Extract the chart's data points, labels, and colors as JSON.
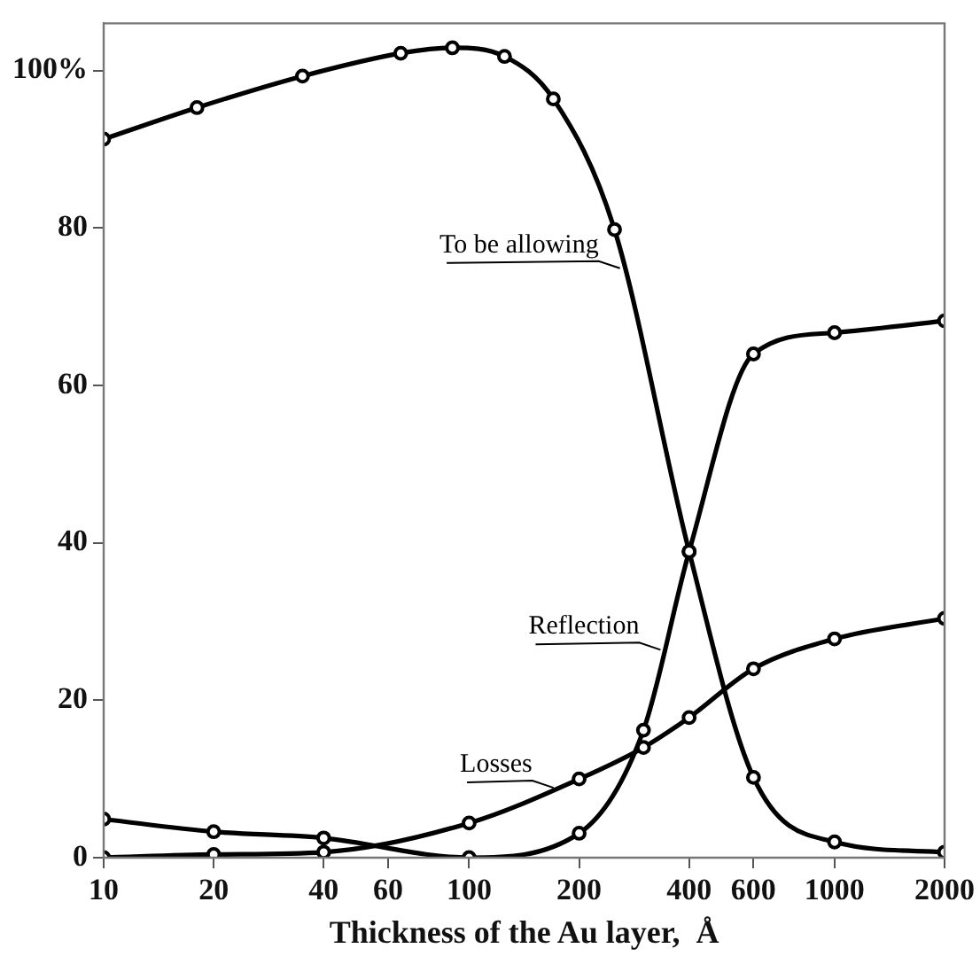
{
  "chart_data": {
    "type": "line",
    "xlabel": "Thickness of the Au layer,  Å",
    "log": "x",
    "xlim": [
      10,
      2000
    ],
    "xticks": [
      10,
      20,
      40,
      60,
      100,
      200,
      400,
      600,
      1000,
      2000
    ],
    "ylim": [
      0,
      106
    ],
    "yticks": [
      0,
      20,
      40,
      60,
      80,
      {
        "value": 100,
        "label": "100%"
      }
    ],
    "grid": false,
    "legend": false,
    "marker": "circle",
    "line_style": "solid",
    "series": [
      {
        "name": "To be allowing",
        "color": "#000000",
        "x": [
          10,
          18,
          35,
          65,
          90,
          125,
          170,
          250,
          400,
          600,
          1000,
          2000
        ],
        "values": [
          91.3,
          95.3,
          99.3,
          102.2,
          102.9,
          101.8,
          96.4,
          79.8,
          38.9,
          10.2,
          2.0,
          0.7
        ]
      },
      {
        "name": "Reflection",
        "color": "#000000",
        "x": [
          10,
          20,
          40,
          100,
          200,
          300,
          400,
          600,
          1000,
          2000
        ],
        "values": [
          4.9,
          3.3,
          2.5,
          0,
          3.1,
          16.2,
          38.9,
          64,
          66.7,
          68.2
        ]
      },
      {
        "name": "Losses",
        "color": "#000000",
        "x": [
          10,
          20,
          40,
          100,
          200,
          300,
          400,
          600,
          1000,
          2000
        ],
        "values": [
          0,
          0.4,
          0.7,
          4.4,
          10,
          14,
          17.8,
          24,
          27.8,
          30.4
        ]
      }
    ]
  }
}
